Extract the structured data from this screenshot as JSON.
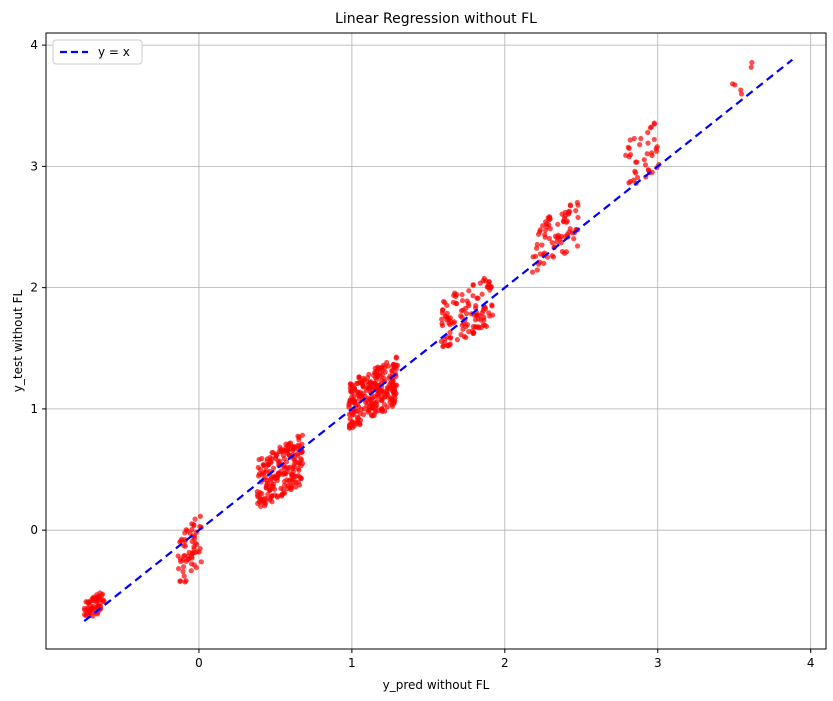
{
  "chart_data": {
    "type": "scatter",
    "title": "Linear Regression without FL",
    "xlabel": "y_pred without FL",
    "ylabel": "y_test without FL",
    "xlim": [
      -1.0,
      4.1
    ],
    "ylim": [
      -0.98,
      4.1
    ],
    "x_ticks": [
      0,
      1,
      2,
      3,
      4
    ],
    "y_ticks": [
      0,
      1,
      2,
      3,
      4
    ],
    "grid": true,
    "legend": {
      "placement": "upper-left",
      "entries": [
        "y = x"
      ]
    },
    "reference_line": {
      "name": "y = x",
      "color": "#0000ff",
      "style": "dashed",
      "x": [
        -0.75,
        3.88
      ],
      "y": [
        -0.75,
        3.88
      ]
    },
    "series": [
      {
        "name": "",
        "marker_color": "#ff0000",
        "clusters": [
          {
            "x_range": [
              -0.75,
              -0.62
            ],
            "y_range": [
              -0.75,
              -0.5
            ],
            "count": 60
          },
          {
            "x_range": [
              -0.14,
              0.02
            ],
            "y_range": [
              -0.5,
              0.16
            ],
            "count": 60
          },
          {
            "x_range": [
              0.38,
              0.68
            ],
            "y_range": [
              0.16,
              0.8
            ],
            "count": 200
          },
          {
            "x_range": [
              0.98,
              1.3
            ],
            "y_range": [
              0.82,
              1.45
            ],
            "count": 250
          },
          {
            "x_range": [
              1.58,
              1.92
            ],
            "y_range": [
              1.48,
              2.12
            ],
            "count": 120
          },
          {
            "x_range": [
              2.18,
              2.48
            ],
            "y_range": [
              2.12,
              2.76
            ],
            "count": 80
          },
          {
            "x_range": [
              2.78,
              3.02
            ],
            "y_range": [
              2.78,
              3.4
            ],
            "count": 40
          },
          {
            "x_range": [
              3.48,
              3.62
            ],
            "y_range": [
              3.5,
              3.88
            ],
            "count": 6
          }
        ]
      }
    ]
  }
}
